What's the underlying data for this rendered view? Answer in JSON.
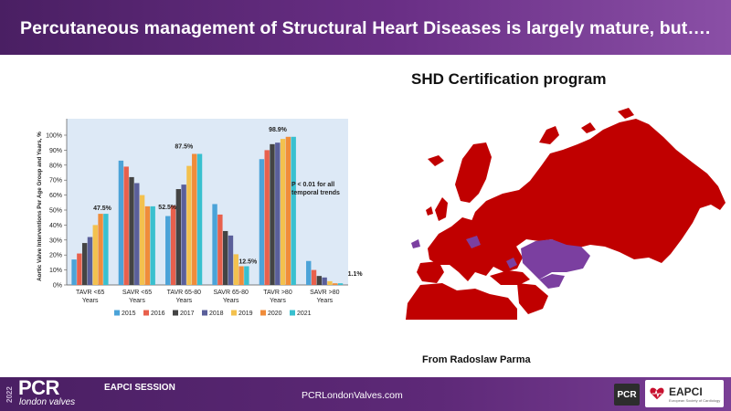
{
  "header": {
    "title": "Percutaneous management of Structural Heart Diseases is largely mature, but…."
  },
  "map_panel": {
    "title": "SHD  Certification program",
    "credit": "From Radoslaw  Parma"
  },
  "footer": {
    "year": "2022",
    "logo": "PCR",
    "logo_sub": "london valves",
    "session": "EAPCI SESSION",
    "website": "PCRLondonValves.com",
    "badge_pcr": "PCR",
    "badge_eapci": "EAPCI",
    "badge_eapci_sub": "European Society of Cardiology"
  },
  "colors": {
    "header": "#5a2877",
    "map_red": "#c00000",
    "map_purple": "#7b3fa0",
    "chart_bg": "#dde9f6"
  },
  "chart_data": {
    "type": "bar",
    "categories": [
      "TAVR <65 Years",
      "SAVR <65 Years",
      "TAVR 65-80 Years",
      "SAVR 65-80 Years",
      "TAVR >80 Years",
      "SAVR >80 Years"
    ],
    "series": [
      {
        "name": "2015",
        "color": "#4ba3d8",
        "values": [
          17,
          83,
          46,
          54,
          84,
          16
        ]
      },
      {
        "name": "2016",
        "color": "#e8604c",
        "values": [
          21,
          79,
          53,
          47,
          90,
          10
        ]
      },
      {
        "name": "2017",
        "color": "#444444",
        "values": [
          28,
          72,
          64,
          36,
          94,
          6
        ]
      },
      {
        "name": "2018",
        "color": "#5a5f9a",
        "values": [
          32,
          68,
          67,
          33,
          95,
          5
        ]
      },
      {
        "name": "2019",
        "color": "#f3c14e",
        "values": [
          40,
          60,
          79.5,
          20.5,
          97.5,
          2.5
        ]
      },
      {
        "name": "2020",
        "color": "#f08c3a",
        "values": [
          47.5,
          52.5,
          87.5,
          12.5,
          98.9,
          1.1
        ]
      },
      {
        "name": "2021",
        "color": "#39c0cf",
        "values": [
          47.5,
          52.5,
          87.5,
          12.5,
          98.9,
          1.1
        ]
      }
    ],
    "data_labels": [
      {
        "category": 0,
        "text": "47.5%"
      },
      {
        "category": 1,
        "text": "52.5%"
      },
      {
        "category": 2,
        "text": "87.5%"
      },
      {
        "category": 3,
        "text": "12.5%"
      },
      {
        "category": 4,
        "text": "98.9%"
      },
      {
        "category": 5,
        "text": "1.1%"
      }
    ],
    "ylabel": "Aortic Valve Interventions Per Age Group and Years, %",
    "yticks": [
      "0%",
      "10%",
      "20%",
      "30%",
      "40%",
      "50%",
      "60%",
      "70%",
      "80%",
      "90%",
      "100%"
    ],
    "ylim": [
      0,
      100
    ],
    "annotation": [
      "P < 0.01 for all",
      "temporal trends"
    ],
    "legend_placement": "bottom"
  }
}
